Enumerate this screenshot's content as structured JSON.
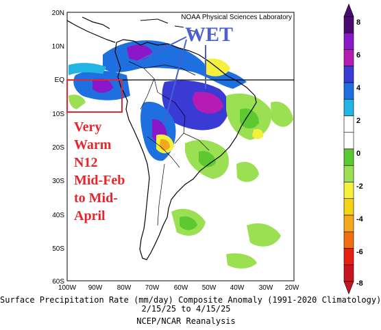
{
  "header": {
    "credit": "NOAA Physical Sciences Laboratory"
  },
  "annotations": {
    "wet": "WET",
    "warm_lines": [
      "Very",
      "Warm",
      "N12",
      "Mid-Feb",
      "to Mid-",
      "April"
    ]
  },
  "map": {
    "lat_labels": [
      "20N",
      "10N",
      "EQ",
      "10S",
      "20S",
      "30S",
      "40S",
      "50S",
      "60S"
    ],
    "lon_labels": [
      "100W",
      "90W",
      "80W",
      "70W",
      "60W",
      "50W",
      "40W",
      "30W",
      "20W"
    ],
    "colors": {
      "blue": "#1e6fe0",
      "dark_blue": "#3a3ad4",
      "purple": "#8a18c8",
      "magenta": "#b41cb4",
      "light_green": "#9be052",
      "green": "#5cc832",
      "yellow": "#f4f03c",
      "orange": "#f4a81c",
      "red_box": "#e8232a",
      "wet_text": "#4a5fd0"
    }
  },
  "colorbar": {
    "labels": [
      "8",
      "6",
      "4",
      "2",
      "0",
      "-2",
      "-4",
      "-6",
      "-8"
    ],
    "colors": [
      "#4b0a72",
      "#8a18c8",
      "#b41cb4",
      "#3a3ad4",
      "#1e6fe0",
      "#23b4e6",
      "#ffffff",
      "#ffffff",
      "#5cc832",
      "#9be052",
      "#f4f03c",
      "#f4d214",
      "#f4a81c",
      "#f06e14",
      "#e81e14",
      "#c8141e"
    ]
  },
  "caption": {
    "line1": "Surface Precipitation Rate (mm/day) Composite Anomaly (1991-2020 Climatology)",
    "line2": "2/15/25  to 4/15/25",
    "line3": "NCEP/NCAR Reanalysis"
  }
}
